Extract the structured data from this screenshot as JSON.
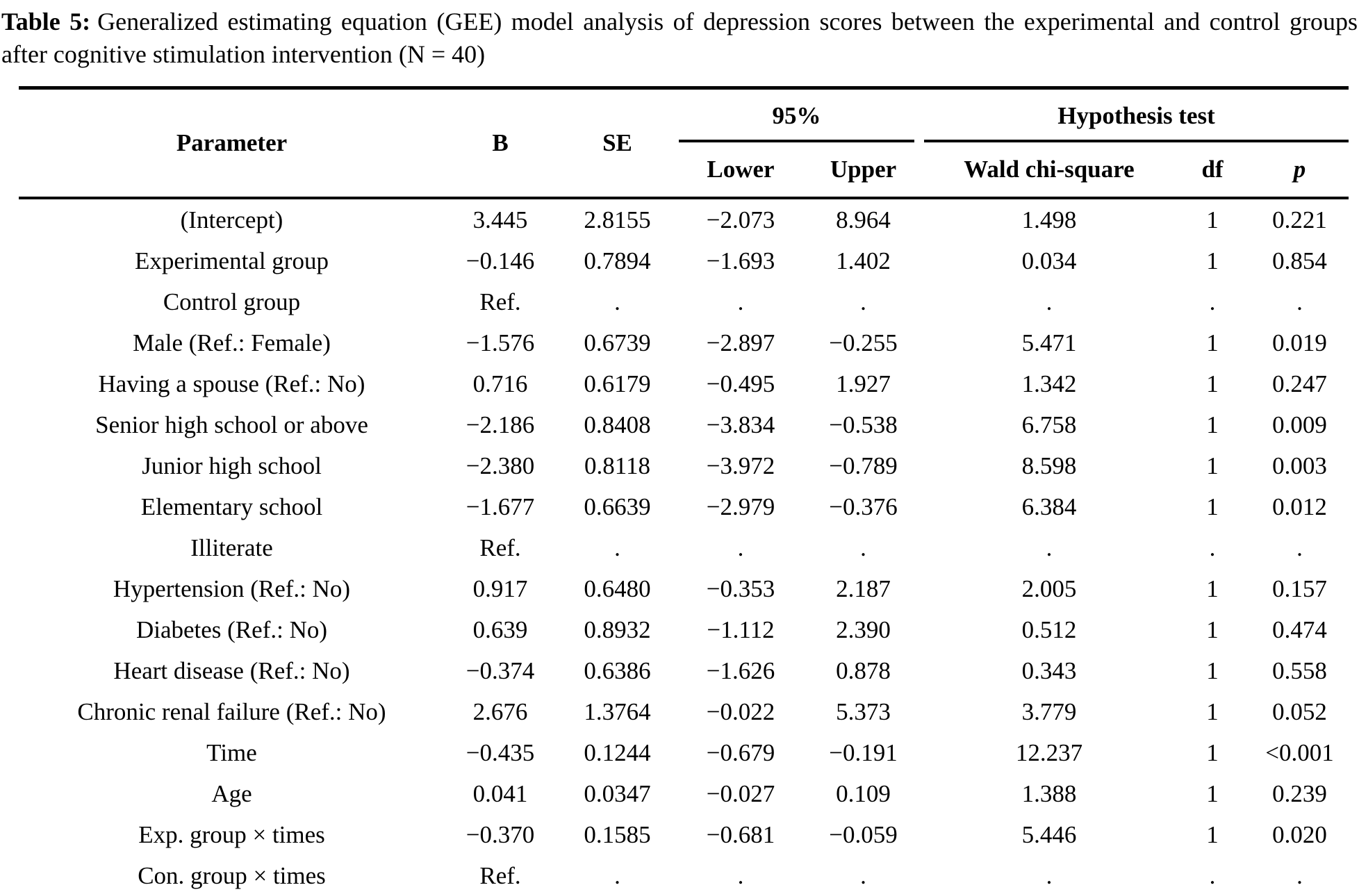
{
  "caption": {
    "label": "Table 5:",
    "text": "Generalized estimating equation (GEE) model analysis of depression scores between the experimental and control groups after cognitive stimulation intervention (N = 40)"
  },
  "table": {
    "headers": {
      "parameter": "Parameter",
      "b": "B",
      "se": "SE",
      "ci": "95%",
      "hypothesis": "Hypothesis test",
      "lower": "Lower",
      "upper": "Upper",
      "wald": "Wald chi-square",
      "df": "df",
      "p": "p"
    },
    "rows": [
      [
        "(Intercept)",
        "3.445",
        "2.8155",
        "−2.073",
        "8.964",
        "1.498",
        "1",
        "0.221"
      ],
      [
        "Experimental group",
        "−0.146",
        "0.7894",
        "−1.693",
        "1.402",
        "0.034",
        "1",
        "0.854"
      ],
      [
        "Control group",
        "Ref.",
        ".",
        ".",
        ".",
        ".",
        ".",
        "."
      ],
      [
        "Male (Ref.: Female)",
        "−1.576",
        "0.6739",
        "−2.897",
        "−0.255",
        "5.471",
        "1",
        "0.019"
      ],
      [
        "Having a spouse (Ref.: No)",
        "0.716",
        "0.6179",
        "−0.495",
        "1.927",
        "1.342",
        "1",
        "0.247"
      ],
      [
        "Senior high school or above",
        "−2.186",
        "0.8408",
        "−3.834",
        "−0.538",
        "6.758",
        "1",
        "0.009"
      ],
      [
        "Junior high school",
        "−2.380",
        "0.8118",
        "−3.972",
        "−0.789",
        "8.598",
        "1",
        "0.003"
      ],
      [
        "Elementary school",
        "−1.677",
        "0.6639",
        "−2.979",
        "−0.376",
        "6.384",
        "1",
        "0.012"
      ],
      [
        "Illiterate",
        "Ref.",
        ".",
        ".",
        ".",
        ".",
        ".",
        "."
      ],
      [
        "Hypertension (Ref.: No)",
        "0.917",
        "0.6480",
        "−0.353",
        "2.187",
        "2.005",
        "1",
        "0.157"
      ],
      [
        "Diabetes (Ref.: No)",
        "0.639",
        "0.8932",
        "−1.112",
        "2.390",
        "0.512",
        "1",
        "0.474"
      ],
      [
        "Heart disease (Ref.: No)",
        "−0.374",
        "0.6386",
        "−1.626",
        "0.878",
        "0.343",
        "1",
        "0.558"
      ],
      [
        "Chronic renal failure (Ref.: No)",
        "2.676",
        "1.3764",
        "−0.022",
        "5.373",
        "3.779",
        "1",
        "0.052"
      ],
      [
        "Time",
        "−0.435",
        "0.1244",
        "−0.679",
        "−0.191",
        "12.237",
        "1",
        "<0.001"
      ],
      [
        "Age",
        "0.041",
        "0.0347",
        "−0.027",
        "0.109",
        "1.388",
        "1",
        "0.239"
      ],
      [
        "Exp. group × times",
        "−0.370",
        "0.1585",
        "−0.681",
        "−0.059",
        "5.446",
        "1",
        "0.020"
      ],
      [
        "Con. group × times",
        "Ref.",
        ".",
        ".",
        ".",
        ".",
        ".",
        "."
      ]
    ]
  }
}
